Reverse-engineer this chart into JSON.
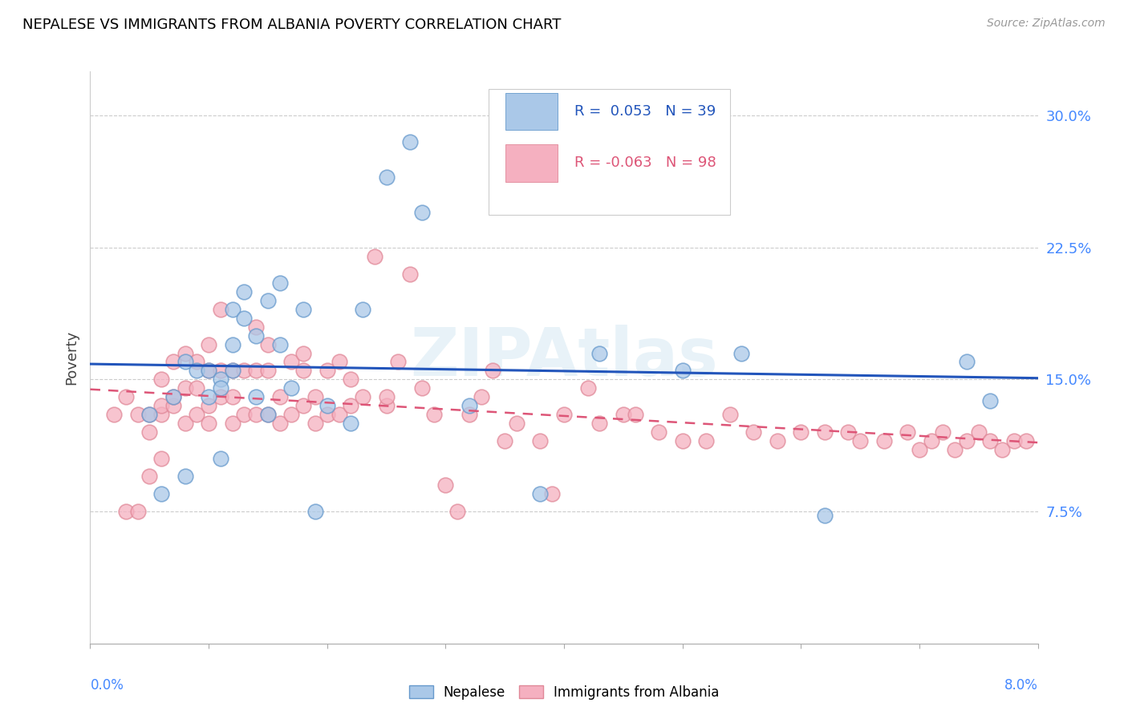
{
  "title": "NEPALESE VS IMMIGRANTS FROM ALBANIA POVERTY CORRELATION CHART",
  "source": "Source: ZipAtlas.com",
  "ylabel": "Poverty",
  "ytick_vals": [
    0.075,
    0.15,
    0.225,
    0.3
  ],
  "ytick_labels": [
    "7.5%",
    "15.0%",
    "22.5%",
    "30.0%"
  ],
  "xlim": [
    0.0,
    0.08
  ],
  "ylim": [
    0.0,
    0.325
  ],
  "nepalese_R": "0.053",
  "nepalese_N": "39",
  "albania_R": "-0.063",
  "albania_N": "98",
  "nepalese_color": "#aac8e8",
  "albania_color": "#f5b0c0",
  "nepalese_edge_color": "#6699cc",
  "albania_edge_color": "#e08898",
  "nepalese_trend_color": "#2255bb",
  "albania_trend_color": "#dd5577",
  "watermark": "ZIPAtlas",
  "right_tick_color": "#4488ff",
  "bottom_tick_color": "#4488ff",
  "nepalese_points_x": [
    0.005,
    0.006,
    0.007,
    0.008,
    0.008,
    0.009,
    0.01,
    0.01,
    0.011,
    0.011,
    0.011,
    0.012,
    0.012,
    0.012,
    0.013,
    0.013,
    0.014,
    0.014,
    0.015,
    0.015,
    0.016,
    0.016,
    0.017,
    0.018,
    0.019,
    0.02,
    0.022,
    0.023,
    0.025,
    0.027,
    0.028,
    0.032,
    0.038,
    0.043,
    0.05,
    0.055,
    0.062,
    0.074,
    0.076
  ],
  "nepalese_points_y": [
    0.13,
    0.085,
    0.14,
    0.095,
    0.16,
    0.155,
    0.155,
    0.14,
    0.15,
    0.145,
    0.105,
    0.155,
    0.17,
    0.19,
    0.185,
    0.2,
    0.14,
    0.175,
    0.13,
    0.195,
    0.17,
    0.205,
    0.145,
    0.19,
    0.075,
    0.135,
    0.125,
    0.19,
    0.265,
    0.285,
    0.245,
    0.135,
    0.085,
    0.165,
    0.155,
    0.165,
    0.073,
    0.16,
    0.138
  ],
  "albania_points_x": [
    0.002,
    0.003,
    0.003,
    0.004,
    0.004,
    0.005,
    0.005,
    0.005,
    0.006,
    0.006,
    0.006,
    0.006,
    0.007,
    0.007,
    0.007,
    0.008,
    0.008,
    0.008,
    0.009,
    0.009,
    0.009,
    0.01,
    0.01,
    0.01,
    0.01,
    0.011,
    0.011,
    0.011,
    0.012,
    0.012,
    0.012,
    0.013,
    0.013,
    0.014,
    0.014,
    0.014,
    0.015,
    0.015,
    0.015,
    0.016,
    0.016,
    0.017,
    0.017,
    0.018,
    0.018,
    0.018,
    0.019,
    0.019,
    0.02,
    0.02,
    0.021,
    0.021,
    0.022,
    0.022,
    0.023,
    0.024,
    0.025,
    0.025,
    0.026,
    0.027,
    0.028,
    0.029,
    0.03,
    0.031,
    0.032,
    0.033,
    0.034,
    0.035,
    0.036,
    0.038,
    0.039,
    0.04,
    0.042,
    0.043,
    0.045,
    0.046,
    0.048,
    0.05,
    0.052,
    0.054,
    0.056,
    0.058,
    0.06,
    0.062,
    0.064,
    0.065,
    0.067,
    0.069,
    0.07,
    0.071,
    0.072,
    0.073,
    0.074,
    0.075,
    0.076,
    0.077,
    0.078,
    0.079
  ],
  "albania_points_y": [
    0.13,
    0.075,
    0.14,
    0.13,
    0.075,
    0.12,
    0.13,
    0.095,
    0.105,
    0.13,
    0.135,
    0.15,
    0.135,
    0.14,
    0.16,
    0.125,
    0.145,
    0.165,
    0.13,
    0.16,
    0.145,
    0.135,
    0.155,
    0.17,
    0.125,
    0.14,
    0.155,
    0.19,
    0.125,
    0.14,
    0.155,
    0.13,
    0.155,
    0.13,
    0.155,
    0.18,
    0.13,
    0.155,
    0.17,
    0.125,
    0.14,
    0.13,
    0.16,
    0.165,
    0.135,
    0.155,
    0.125,
    0.14,
    0.13,
    0.155,
    0.16,
    0.13,
    0.15,
    0.135,
    0.14,
    0.22,
    0.135,
    0.14,
    0.16,
    0.21,
    0.145,
    0.13,
    0.09,
    0.075,
    0.13,
    0.14,
    0.155,
    0.115,
    0.125,
    0.115,
    0.085,
    0.13,
    0.145,
    0.125,
    0.13,
    0.13,
    0.12,
    0.115,
    0.115,
    0.13,
    0.12,
    0.115,
    0.12,
    0.12,
    0.12,
    0.115,
    0.115,
    0.12,
    0.11,
    0.115,
    0.12,
    0.11,
    0.115,
    0.12,
    0.115,
    0.11,
    0.115,
    0.115
  ]
}
